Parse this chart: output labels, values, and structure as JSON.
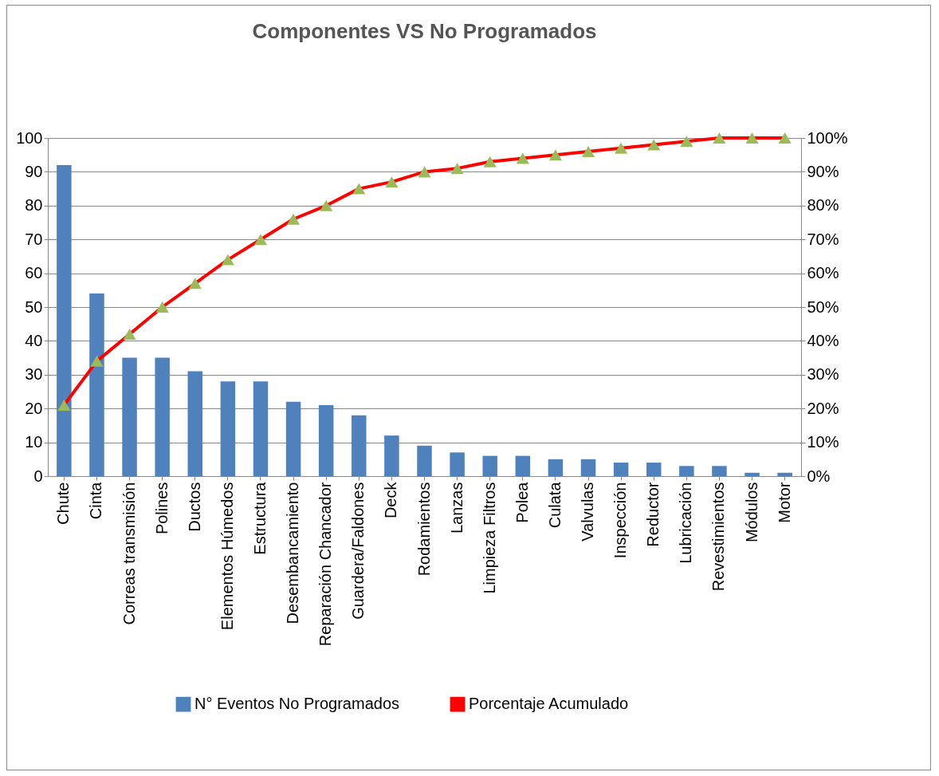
{
  "chart_data": {
    "type": "bar",
    "title": "Componentes VS No Programados",
    "categories": [
      "Chute",
      "Cinta",
      "Correas transmisión",
      "Polines",
      "Ductos",
      "Elementos Húmedos",
      "Estructura",
      "Desembancamiento",
      "Reparación Chancador",
      "Guardera/Faldones",
      "Deck",
      "Rodamientos",
      "Lanzas",
      "Limpieza Filtros",
      "Polea",
      "Culata",
      "Valvulas",
      "Inspección",
      "Reductor",
      "Lubricación",
      "Revestimientos",
      "Módulos",
      "Motor"
    ],
    "series": [
      {
        "name": "N° Eventos No Programados",
        "color": "#4f81bd",
        "values": [
          92,
          54,
          35,
          35,
          31,
          28,
          28,
          22,
          21,
          18,
          12,
          9,
          7,
          6,
          6,
          5,
          5,
          4,
          4,
          3,
          3,
          1,
          1
        ]
      },
      {
        "name": "Porcentaje Acumulado",
        "type": "line",
        "axis": "y2",
        "color": "#ff0000",
        "marker": "triangle",
        "values": [
          21,
          34,
          42,
          50,
          57,
          64,
          70,
          76,
          80,
          85,
          87,
          90,
          91,
          93,
          94,
          95,
          96,
          97,
          98,
          99,
          100,
          100,
          100
        ]
      }
    ],
    "ylim": [
      0,
      100
    ],
    "yticks": [
      0,
      10,
      20,
      30,
      40,
      50,
      60,
      70,
      80,
      90,
      100
    ],
    "y2lim": [
      0,
      100
    ],
    "y2ticks": [
      {
        "value": 0,
        "label": "0%"
      },
      {
        "value": 10,
        "label": "10%"
      },
      {
        "value": 20,
        "label": "20%"
      },
      {
        "value": 30,
        "label": "30%"
      },
      {
        "value": 40,
        "label": "40%"
      },
      {
        "value": 50,
        "label": "50%"
      },
      {
        "value": 60,
        "label": "60%"
      },
      {
        "value": 70,
        "label": "70%"
      },
      {
        "value": 80,
        "label": "80%"
      },
      {
        "value": 90,
        "label": "90%"
      },
      {
        "value": 100,
        "label": "100%"
      }
    ],
    "grid": "y",
    "legend": "bottom"
  }
}
